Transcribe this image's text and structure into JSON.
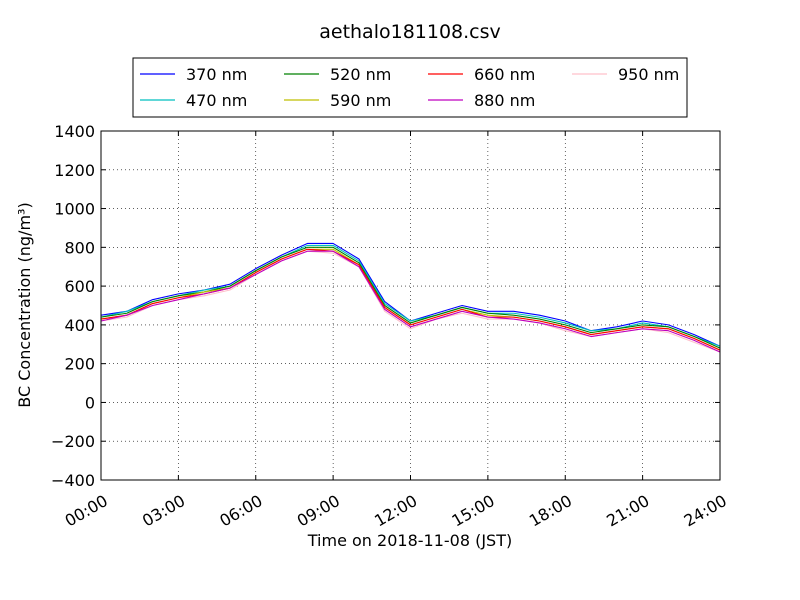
{
  "chart_data": {
    "type": "line",
    "title": "aethalo181108.csv",
    "xlabel": "Time on 2018-11-08 (JST)",
    "ylabel": "BC Concentration (ng/m³)",
    "x_ticks": [
      "00:00",
      "03:00",
      "06:00",
      "09:00",
      "12:00",
      "15:00",
      "18:00",
      "21:00",
      "24:00"
    ],
    "x_tick_hours": [
      0,
      3,
      6,
      9,
      12,
      15,
      18,
      21,
      24
    ],
    "xlim_hours": [
      0,
      24
    ],
    "ylim": [
      -400,
      1400
    ],
    "y_ticks": [
      -400,
      -200,
      0,
      200,
      400,
      600,
      800,
      1000,
      1200,
      1400
    ],
    "grid": true,
    "legend_position": "top",
    "legend_columns": 4,
    "series": [
      {
        "name": "370 nm",
        "color": "#0000ff",
        "time_hours": [
          0,
          1,
          2,
          3,
          4,
          5,
          6,
          7,
          8,
          9,
          10,
          11,
          12,
          13,
          14,
          15,
          16,
          17,
          18,
          19,
          20,
          21,
          22,
          23,
          24
        ],
        "values": [
          450,
          470,
          530,
          560,
          580,
          610,
          690,
          760,
          820,
          820,
          740,
          520,
          420,
          460,
          500,
          470,
          470,
          450,
          420,
          370,
          390,
          420,
          400,
          350,
          290
        ]
      },
      {
        "name": "470 nm",
        "color": "#00bfbf",
        "time_hours": [
          0,
          1,
          2,
          3,
          4,
          5,
          6,
          7,
          8,
          9,
          10,
          11,
          12,
          13,
          14,
          15,
          16,
          17,
          18,
          19,
          20,
          21,
          22,
          23,
          24
        ],
        "values": [
          440,
          470,
          520,
          550,
          580,
          600,
          680,
          750,
          810,
          810,
          730,
          510,
          420,
          450,
          490,
          460,
          460,
          440,
          410,
          370,
          380,
          410,
          390,
          340,
          290
        ]
      },
      {
        "name": "520 nm",
        "color": "#008000",
        "time_hours": [
          0,
          1,
          2,
          3,
          4,
          5,
          6,
          7,
          8,
          9,
          10,
          11,
          12,
          13,
          14,
          15,
          16,
          17,
          18,
          19,
          20,
          21,
          22,
          23,
          24
        ],
        "values": [
          440,
          460,
          520,
          550,
          570,
          600,
          680,
          750,
          800,
          800,
          720,
          500,
          410,
          450,
          490,
          460,
          450,
          430,
          400,
          360,
          380,
          400,
          390,
          340,
          280
        ]
      },
      {
        "name": "590 nm",
        "color": "#bfbf00",
        "time_hours": [
          0,
          1,
          2,
          3,
          4,
          5,
          6,
          7,
          8,
          9,
          10,
          11,
          12,
          13,
          14,
          15,
          16,
          17,
          18,
          19,
          20,
          21,
          22,
          23,
          24
        ],
        "values": [
          430,
          450,
          510,
          540,
          570,
          590,
          670,
          740,
          790,
          790,
          710,
          490,
          400,
          440,
          480,
          450,
          440,
          420,
          390,
          350,
          370,
          390,
          380,
          330,
          270
        ]
      },
      {
        "name": "660 nm",
        "color": "#ff0000",
        "time_hours": [
          0,
          1,
          2,
          3,
          4,
          5,
          6,
          7,
          8,
          9,
          10,
          11,
          12,
          13,
          14,
          15,
          16,
          17,
          18,
          19,
          20,
          21,
          22,
          23,
          24
        ],
        "values": [
          430,
          450,
          510,
          540,
          560,
          590,
          670,
          740,
          790,
          780,
          710,
          490,
          400,
          440,
          480,
          440,
          440,
          420,
          390,
          350,
          370,
          390,
          380,
          330,
          270
        ]
      },
      {
        "name": "880 nm",
        "color": "#bf00bf",
        "time_hours": [
          0,
          1,
          2,
          3,
          4,
          5,
          6,
          7,
          8,
          9,
          10,
          11,
          12,
          13,
          14,
          15,
          16,
          17,
          18,
          19,
          20,
          21,
          22,
          23,
          24
        ],
        "values": [
          420,
          450,
          500,
          530,
          560,
          590,
          660,
          730,
          780,
          780,
          700,
          480,
          390,
          430,
          470,
          440,
          430,
          410,
          380,
          340,
          360,
          380,
          370,
          320,
          260
        ]
      },
      {
        "name": "950 nm",
        "color": "#ffc0cb",
        "time_hours": [
          0,
          1,
          2,
          3,
          4,
          5,
          6,
          7,
          8,
          9,
          10,
          11,
          12,
          13,
          14,
          15,
          16,
          17,
          18,
          19,
          20,
          21,
          22,
          23,
          24
        ],
        "values": [
          420,
          440,
          500,
          530,
          550,
          580,
          660,
          730,
          780,
          770,
          700,
          470,
          380,
          430,
          460,
          430,
          430,
          410,
          370,
          340,
          360,
          380,
          360,
          310,
          260
        ]
      }
    ]
  }
}
